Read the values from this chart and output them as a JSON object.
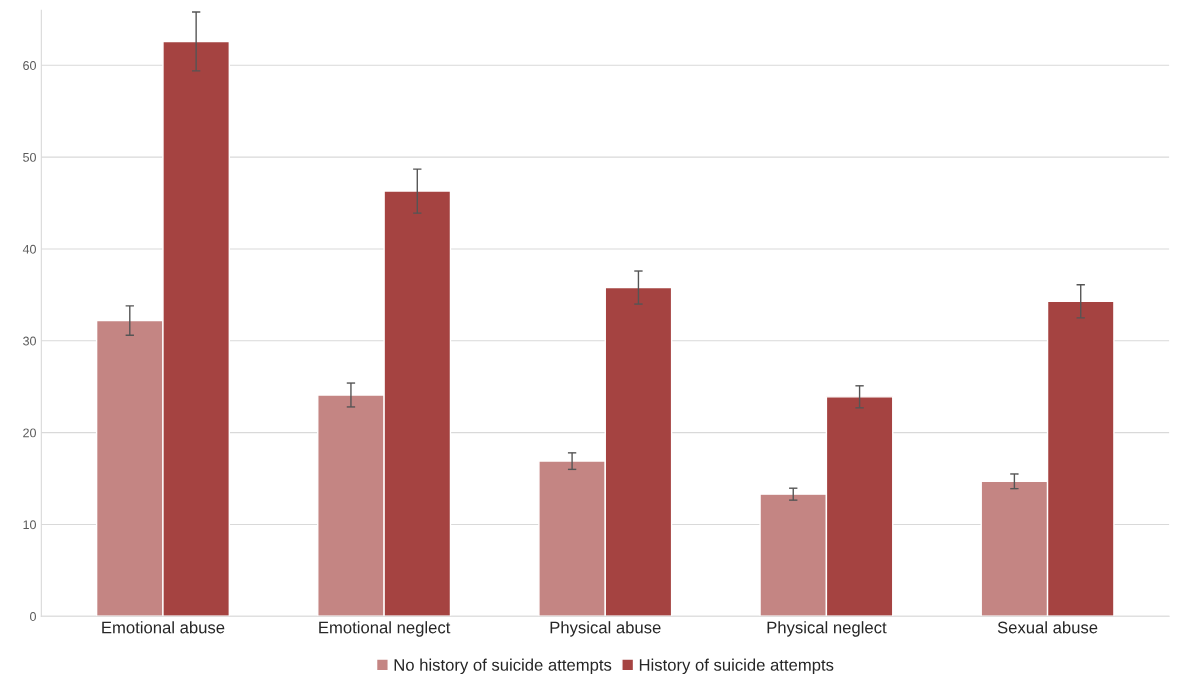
{
  "chart_data": {
    "type": "bar",
    "categories": [
      "Emotional abuse",
      "Emotional neglect",
      "Physical abuse",
      "Physical neglect",
      "Sexual abuse"
    ],
    "series": [
      {
        "name": "No history of suicide attempts",
        "color": "#c48583",
        "values": [
          32.2,
          24.1,
          16.9,
          13.3,
          14.7
        ],
        "errors": [
          1.6,
          1.3,
          0.9,
          0.65,
          0.8
        ]
      },
      {
        "name": "History of suicide attempts",
        "color": "#a54341",
        "values": [
          62.6,
          46.3,
          35.8,
          23.9,
          34.3
        ],
        "errors": [
          3.2,
          2.4,
          1.8,
          1.2,
          1.8
        ]
      }
    ],
    "ylim": [
      0,
      66
    ],
    "yticks": [
      0,
      10,
      20,
      30,
      40,
      50,
      60
    ],
    "grid": "y",
    "legend": "bottom"
  }
}
